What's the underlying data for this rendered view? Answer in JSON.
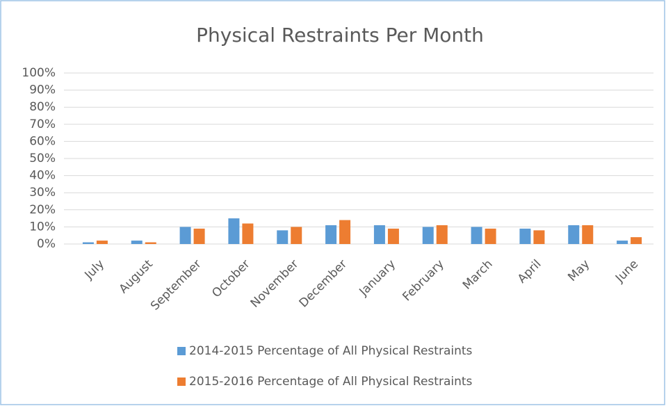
{
  "chart_data": {
    "type": "bar",
    "title": "Physical Restraints Per Month",
    "categories": [
      "July",
      "August",
      "September",
      "October",
      "November",
      "December",
      "January",
      "February",
      "March",
      "April",
      "May",
      "June"
    ],
    "series": [
      {
        "name": "2014-2015 Percentage of All Physical Restraints",
        "color": "#5b9bd5",
        "values": [
          1,
          2,
          10,
          15,
          8,
          11,
          11,
          10,
          10,
          9,
          11,
          2
        ]
      },
      {
        "name": "2015-2016 Percentage of All Physical Restraints",
        "color": "#ed7d31",
        "values": [
          2,
          1,
          9,
          12,
          10,
          14,
          9,
          11,
          9,
          8,
          11,
          4
        ]
      }
    ],
    "ylim": [
      0,
      100
    ],
    "yticks": [
      {
        "value": 0,
        "label": "0%"
      },
      {
        "value": 10,
        "label": "10%"
      },
      {
        "value": 20,
        "label": "20%"
      },
      {
        "value": 30,
        "label": "30%"
      },
      {
        "value": 40,
        "label": "40%"
      },
      {
        "value": 50,
        "label": "50%"
      },
      {
        "value": 60,
        "label": "60%"
      },
      {
        "value": 70,
        "label": "70%"
      },
      {
        "value": 80,
        "label": "80%"
      },
      {
        "value": 90,
        "label": "90%"
      },
      {
        "value": 100,
        "label": "100%"
      }
    ],
    "grid": true,
    "legend": "bottom"
  }
}
